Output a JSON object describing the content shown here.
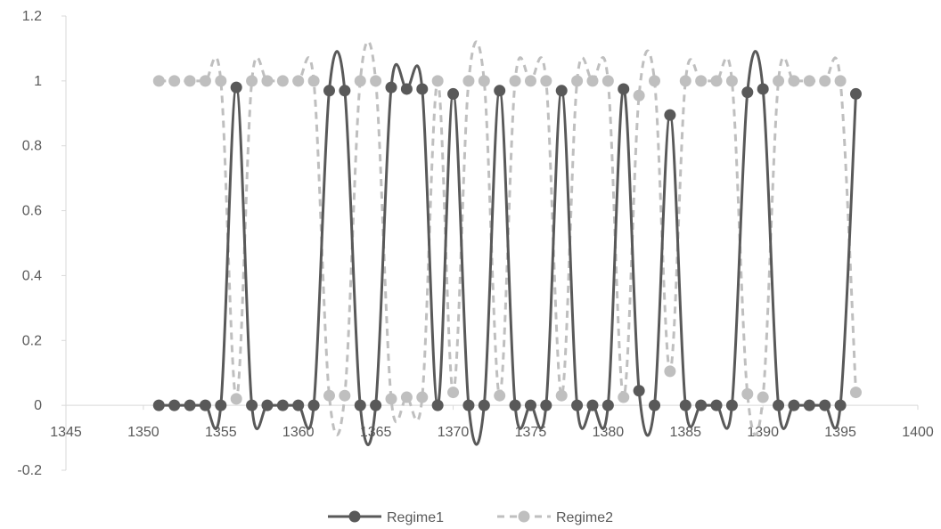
{
  "chart_data": {
    "type": "line",
    "title": "",
    "xlabel": "",
    "ylabel": "",
    "xlim": [
      1345,
      1400
    ],
    "ylim": [
      -0.2,
      1.2
    ],
    "x_ticks": [
      1345,
      1350,
      1355,
      1360,
      1365,
      1370,
      1375,
      1380,
      1385,
      1390,
      1395,
      1400
    ],
    "y_ticks": [
      -0.2,
      0,
      0.2,
      0.4,
      0.6,
      0.8,
      1,
      1.2
    ],
    "x_tick_labels": [
      "1345",
      "1350",
      "1355",
      "1360",
      "1365",
      "1370",
      "1375",
      "1380",
      "1385",
      "1390",
      "1395",
      "1400"
    ],
    "y_tick_labels": [
      "-0.2",
      "0",
      "0.2",
      "0.4",
      "0.6",
      "0.8",
      "1",
      "1.2"
    ],
    "grid": false,
    "legend_position": "bottom",
    "x": [
      1351,
      1352,
      1353,
      1354,
      1355,
      1356,
      1357,
      1358,
      1359,
      1360,
      1361,
      1362,
      1363,
      1364,
      1365,
      1366,
      1367,
      1368,
      1369,
      1370,
      1371,
      1372,
      1373,
      1374,
      1375,
      1376,
      1377,
      1378,
      1379,
      1380,
      1381,
      1382,
      1383,
      1384,
      1385,
      1386,
      1387,
      1388,
      1389,
      1390,
      1391,
      1392,
      1393,
      1394,
      1395,
      1396
    ],
    "series": [
      {
        "name": "Regime1",
        "color": "#595959",
        "style": "solid",
        "values": [
          0,
          0,
          0,
          0,
          0,
          0.98,
          0,
          0,
          0,
          0,
          0,
          0.97,
          0.97,
          0,
          0,
          0.98,
          0.975,
          0.975,
          0,
          0.96,
          0,
          0,
          0.97,
          0,
          0,
          0,
          0.97,
          0,
          0,
          0,
          0.975,
          0.045,
          0,
          0.895,
          0,
          0,
          0,
          0,
          0.965,
          0.975,
          0,
          0,
          0,
          0,
          0,
          0.96
        ]
      },
      {
        "name": "Regime2",
        "color": "#bfbfbf",
        "style": "dashed",
        "values": [
          1,
          1,
          1,
          1,
          1,
          0.02,
          1,
          1,
          1,
          1,
          1,
          0.03,
          0.03,
          1,
          1,
          0.02,
          0.025,
          0.025,
          1,
          0.04,
          1,
          1,
          0.03,
          1,
          1,
          1,
          0.03,
          1,
          1,
          1,
          0.025,
          0.955,
          1,
          0.105,
          1,
          1,
          1,
          1,
          0.035,
          0.025,
          1,
          1,
          1,
          1,
          1,
          0.04
        ]
      }
    ]
  }
}
